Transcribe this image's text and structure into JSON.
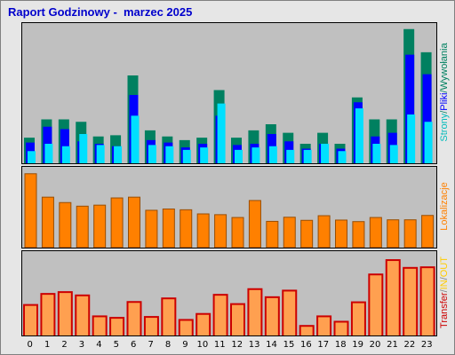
{
  "window": {
    "title": "Raport Godzinowy -  marzec 2025"
  },
  "legends": {
    "top": [
      {
        "text": "Strony",
        "color": "#00bbbb"
      },
      {
        "text": "/",
        "color": "#008060"
      },
      {
        "text": "Pliki",
        "color": "#0000ff"
      },
      {
        "text": "/",
        "color": "#008060"
      },
      {
        "text": "Wywołania",
        "color": "#008060"
      }
    ],
    "middle": [
      {
        "text": "Lokalizacje",
        "color": "#ff8000"
      }
    ],
    "bottom": [
      {
        "text": "Transfer",
        "color": "#cc0000"
      },
      {
        "text": "/",
        "color": "#808080"
      },
      {
        "text": "IN",
        "color": "#ffcc00"
      },
      {
        "text": "/",
        "color": "#808080"
      },
      {
        "text": "OUT",
        "color": "#ffcc00"
      }
    ]
  },
  "chart_data": [
    {
      "type": "bar",
      "categories": [
        "0",
        "1",
        "2",
        "3",
        "4",
        "5",
        "6",
        "7",
        "8",
        "9",
        "10",
        "11",
        "12",
        "13",
        "14",
        "15",
        "16",
        "17",
        "18",
        "19",
        "20",
        "21",
        "22",
        "23"
      ],
      "ylim": [
        0,
        5600
      ],
      "yticks": [
        "1000",
        "2k",
        "3k",
        "4k",
        "5k"
      ],
      "ytick_values": [
        1000,
        2000,
        3000,
        4000,
        5000
      ],
      "series": [
        {
          "name": "Wywołania",
          "color": "#008060",
          "values": [
            1050,
            1800,
            1800,
            1700,
            1100,
            1150,
            3600,
            1350,
            1100,
            950,
            1050,
            3000,
            1050,
            1350,
            1600,
            1250,
            800,
            1250,
            800,
            2700,
            1800,
            1800,
            5500,
            4550
          ]
        },
        {
          "name": "Pliki",
          "color": "#0000ff",
          "values": [
            850,
            1500,
            1400,
            900,
            800,
            700,
            2800,
            950,
            850,
            650,
            800,
            1950,
            750,
            800,
            1200,
            900,
            600,
            800,
            600,
            2500,
            1100,
            1250,
            4450,
            3650
          ]
        },
        {
          "name": "Strony",
          "color": "#00e0ff",
          "values": [
            500,
            800,
            700,
            1200,
            750,
            700,
            1950,
            750,
            700,
            550,
            650,
            2450,
            550,
            650,
            700,
            550,
            550,
            800,
            500,
            2250,
            800,
            750,
            2000,
            1700
          ]
        }
      ]
    },
    {
      "type": "bar",
      "categories": [
        "0",
        "1",
        "2",
        "3",
        "4",
        "5",
        "6",
        "7",
        "8",
        "9",
        "10",
        "11",
        "12",
        "13",
        "14",
        "15",
        "16",
        "17",
        "18",
        "19",
        "20",
        "21",
        "22",
        "23"
      ],
      "ylim": [
        0,
        300
      ],
      "yticks": [
        "50",
        "100",
        "150",
        "200",
        "250"
      ],
      "ytick_values": [
        50,
        100,
        150,
        200,
        250
      ],
      "series": [
        {
          "name": "Lokalizacje",
          "color": "#ff8000",
          "values": [
            287,
            196,
            175,
            161,
            165,
            193,
            196,
            145,
            150,
            147,
            131,
            128,
            117,
            183,
            102,
            118,
            106,
            124,
            107,
            101,
            117,
            108,
            108,
            125
          ]
        }
      ]
    },
    {
      "type": "bar",
      "categories": [
        "0",
        "1",
        "2",
        "3",
        "4",
        "5",
        "6",
        "7",
        "8",
        "9",
        "10",
        "11",
        "12",
        "13",
        "14",
        "15",
        "16",
        "17",
        "18",
        "19",
        "20",
        "21",
        "22",
        "23"
      ],
      "ylim": [
        0,
        270
      ],
      "yticks": [
        "50M",
        "100M",
        "150M",
        "200M",
        "250M"
      ],
      "ytick_values": [
        50,
        100,
        150,
        200,
        250
      ],
      "series": [
        {
          "name": "Transfer",
          "color": "#cc0000",
          "values": [
            105,
            142,
            148,
            137,
            67,
            62,
            115,
            65,
            127,
            55,
            75,
            139,
            108,
            158,
            131,
            153,
            35,
            67,
            49,
            114,
            207,
            255,
            229,
            231
          ]
        },
        {
          "name": "OUT",
          "color": "#ffa050",
          "values": [
            105,
            142,
            148,
            137,
            67,
            62,
            115,
            65,
            127,
            55,
            75,
            139,
            108,
            158,
            131,
            153,
            35,
            67,
            49,
            114,
            207,
            255,
            229,
            231
          ]
        }
      ]
    }
  ]
}
